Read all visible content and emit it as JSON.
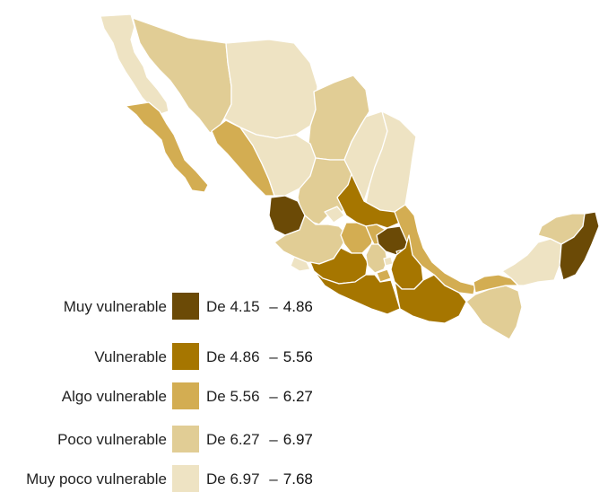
{
  "colors": {
    "muy_vulnerable": "#6b4a06",
    "vulnerable": "#a67600",
    "algo_vulnerable": "#d3ad52",
    "poco_vulnerable": "#e1cd95",
    "muy_poco_vulnerable": "#eee3c3"
  },
  "legend": [
    {
      "label": "Muy vulnerable",
      "prefix": "De",
      "low": "4.15",
      "dash": "–",
      "high": "4.86",
      "color_key": "muy_vulnerable"
    },
    {
      "label": "Vulnerable",
      "prefix": "De",
      "low": "4.86",
      "dash": "–",
      "high": "5.56",
      "color_key": "vulnerable"
    },
    {
      "label": "Algo vulnerable",
      "prefix": "De",
      "low": "5.56",
      "dash": "–",
      "high": "6.27",
      "color_key": "algo_vulnerable"
    },
    {
      "label": "Poco vulnerable",
      "prefix": "De",
      "low": "6.27",
      "dash": "–",
      "high": "6.97",
      "color_key": "poco_vulnerable"
    },
    {
      "label": "Muy poco vulnerable",
      "prefix": "De",
      "low": "6.97",
      "dash": "–",
      "high": "7.68",
      "color_key": "muy_poco_vulnerable"
    }
  ],
  "regions": [
    {
      "id": "baja-california",
      "class": "muy_poco_vulnerable"
    },
    {
      "id": "baja-california-sur",
      "class": "algo_vulnerable"
    },
    {
      "id": "sonora",
      "class": "poco_vulnerable"
    },
    {
      "id": "chihuahua",
      "class": "muy_poco_vulnerable"
    },
    {
      "id": "coahuila",
      "class": "poco_vulnerable"
    },
    {
      "id": "nuevo-leon",
      "class": "muy_poco_vulnerable"
    },
    {
      "id": "tamaulipas",
      "class": "muy_poco_vulnerable"
    },
    {
      "id": "sinaloa",
      "class": "algo_vulnerable"
    },
    {
      "id": "durango",
      "class": "muy_poco_vulnerable"
    },
    {
      "id": "zacatecas",
      "class": "poco_vulnerable"
    },
    {
      "id": "san-luis-potosi",
      "class": "vulnerable"
    },
    {
      "id": "nayarit",
      "class": "muy_vulnerable"
    },
    {
      "id": "aguascalientes",
      "class": "muy_poco_vulnerable"
    },
    {
      "id": "jalisco",
      "class": "poco_vulnerable"
    },
    {
      "id": "guanajuato",
      "class": "algo_vulnerable"
    },
    {
      "id": "queretaro",
      "class": "algo_vulnerable"
    },
    {
      "id": "hidalgo",
      "class": "muy_vulnerable"
    },
    {
      "id": "veracruz",
      "class": "algo_vulnerable"
    },
    {
      "id": "colima",
      "class": "muy_poco_vulnerable"
    },
    {
      "id": "michoacan",
      "class": "vulnerable"
    },
    {
      "id": "mexico",
      "class": "poco_vulnerable"
    },
    {
      "id": "cdmx",
      "class": "muy_poco_vulnerable"
    },
    {
      "id": "tlaxcala",
      "class": "vulnerable"
    },
    {
      "id": "morelos",
      "class": "algo_vulnerable"
    },
    {
      "id": "puebla",
      "class": "vulnerable"
    },
    {
      "id": "guerrero",
      "class": "vulnerable"
    },
    {
      "id": "oaxaca",
      "class": "vulnerable"
    },
    {
      "id": "chiapas",
      "class": "poco_vulnerable"
    },
    {
      "id": "tabasco",
      "class": "algo_vulnerable"
    },
    {
      "id": "campeche",
      "class": "muy_poco_vulnerable"
    },
    {
      "id": "yucatan",
      "class": "poco_vulnerable"
    },
    {
      "id": "quintana-roo",
      "class": "muy_vulnerable"
    }
  ]
}
